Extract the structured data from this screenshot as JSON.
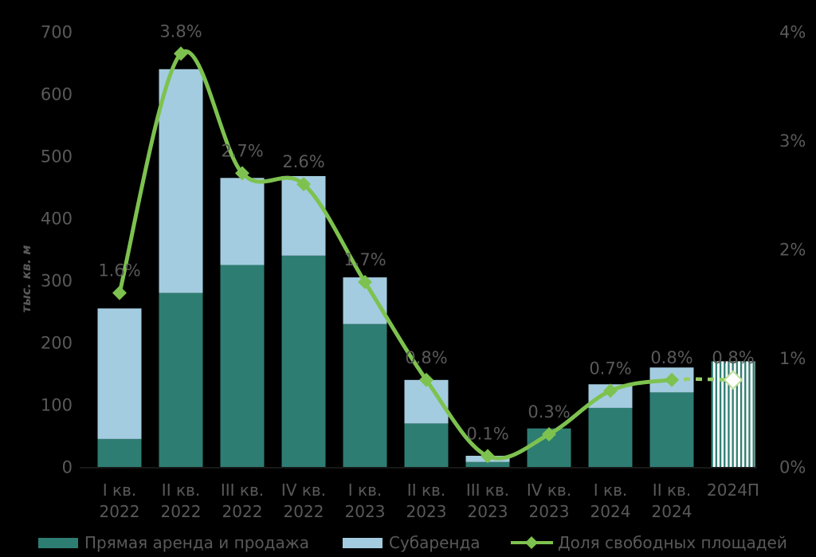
{
  "colors": {
    "background": "#000000",
    "direct_lease_bar": "#2E7D72",
    "sublease_bar": "#A4CCE0",
    "vacancy_line": "#7DC24F",
    "vacancy_line_forecast_dash": "#97CE68",
    "forecast_marker_fill": "#FFFFFF",
    "forecast_marker_stroke": "#BFE09A",
    "axis_text": "#595959"
  },
  "y_axis": {
    "title": "тыс. кв. м",
    "ticks": [
      "0",
      "100",
      "200",
      "300",
      "400",
      "500",
      "600",
      "700"
    ]
  },
  "right_axis": {
    "ticks": [
      "0%",
      "1%",
      "2%",
      "3%",
      "4%"
    ]
  },
  "chart_data": {
    "type": "bar",
    "subtype": "stacked-bars-with-secondary-axis-line",
    "categories": [
      "I кв. 2022",
      "II кв. 2022",
      "III кв. 2022",
      "IV кв. 2022",
      "I кв. 2023",
      "II кв. 2023",
      "III кв. 2023",
      "IV кв. 2023",
      "I кв. 2024",
      "II кв. 2024",
      "2024П"
    ],
    "series": [
      {
        "name": "Прямая аренда и продажа",
        "type": "bar",
        "stacked": true,
        "color": "#2E7D72",
        "values": [
          45,
          280,
          325,
          340,
          230,
          70,
          8,
          62,
          95,
          120,
          null
        ]
      },
      {
        "name": "Субаренда",
        "type": "bar",
        "stacked": true,
        "color": "#A4CCE0",
        "values": [
          210,
          360,
          140,
          128,
          75,
          70,
          10,
          0,
          38,
          40,
          null
        ]
      },
      {
        "name": "Доля свободных площадей",
        "type": "line",
        "axis": "right",
        "color": "#7DC24F",
        "values": [
          1.6,
          3.8,
          2.7,
          2.6,
          1.7,
          0.8,
          0.1,
          0.3,
          0.7,
          0.8,
          0.8
        ],
        "labels": [
          "1.6%",
          "3.8%",
          "2.7%",
          "2.6%",
          "1.7%",
          "0.8%",
          "0.1%",
          "0.3%",
          "0.7%",
          "0.8%",
          "0.8%"
        ]
      }
    ],
    "forecast": {
      "category": "2024П",
      "index": 10,
      "total_volume": 170,
      "vacancy": 0.8,
      "style": "hatched bar, dashed line segment, hollow diamond marker"
    },
    "ylabel": "тыс. кв. м",
    "ylim": [
      0,
      700
    ],
    "y2lim": [
      0,
      4
    ],
    "grid": false,
    "legend_position": "bottom"
  },
  "legend": {
    "items": [
      {
        "label": "Прямая аренда и продажа",
        "marker": "dark-teal-swatch"
      },
      {
        "label": "Субаренда",
        "marker": "light-blue-swatch"
      },
      {
        "label": "Доля свободных площадей",
        "marker": "green-line-diamond"
      }
    ]
  }
}
